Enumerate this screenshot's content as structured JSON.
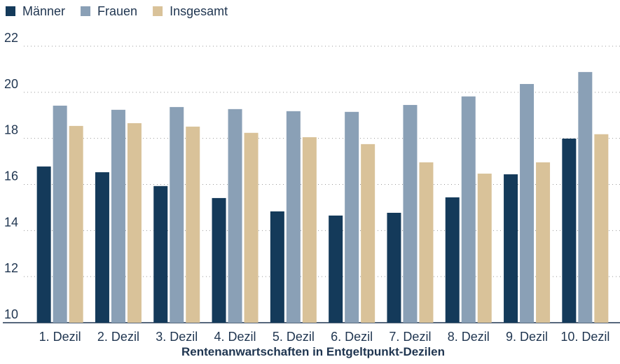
{
  "chart_data": {
    "type": "bar",
    "x_label": "Rentenanwartschaften in Entgeltpunkt-Dezilen",
    "categories": [
      "1. Dezil",
      "2. Dezil",
      "3. Dezil",
      "4. Dezil",
      "5. Dezil",
      "6. Dezil",
      "7. Dezil",
      "8. Dezil",
      "9. Dezil",
      "10. Dezil"
    ],
    "series": [
      {
        "name": "Männer",
        "color": "#143a5a",
        "values": [
          16.78,
          16.53,
          15.93,
          15.41,
          14.83,
          14.65,
          14.77,
          15.44,
          16.44,
          17.99
        ]
      },
      {
        "name": "Frauen",
        "color": "#8aa0b6",
        "values": [
          19.42,
          19.24,
          19.36,
          19.27,
          19.18,
          19.15,
          19.45,
          19.82,
          20.36,
          20.88
        ]
      },
      {
        "name": "Insgesamt",
        "color": "#d9c299",
        "values": [
          18.54,
          18.66,
          18.51,
          18.24,
          18.05,
          17.75,
          16.96,
          16.47,
          16.96,
          18.18
        ]
      }
    ],
    "ylim": [
      10,
      22
    ],
    "yticks": [
      10,
      12,
      14,
      16,
      18,
      20,
      22
    ],
    "grid": true,
    "legend": "top-left"
  }
}
